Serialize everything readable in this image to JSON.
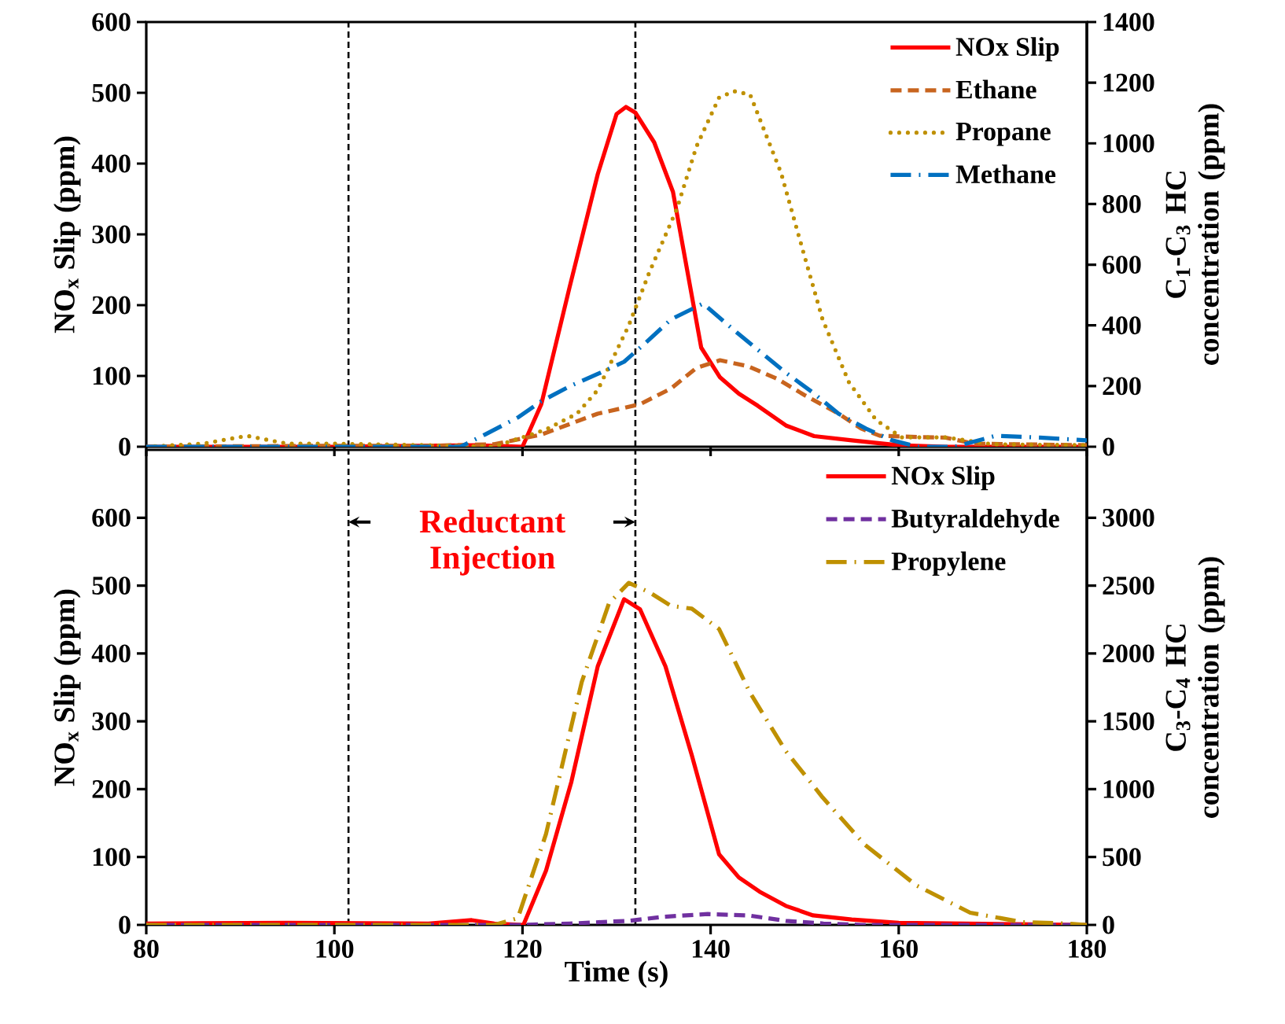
{
  "chart_data": [
    {
      "type": "line",
      "ylabel": "NO$_{x}$ Slip (ppm)",
      "y2label": "C$_{1}$-C$_{3}$ HC concentration (ppm)",
      "xlim": [
        80,
        180
      ],
      "xticks": [
        80,
        100,
        120,
        140,
        160,
        180
      ],
      "ylim": [
        0,
        600
      ],
      "yticks": [
        0,
        100,
        200,
        300,
        400,
        500,
        600
      ],
      "y2lim": [
        0,
        1400
      ],
      "y2ticks": [
        0,
        200,
        400,
        600,
        800,
        1000,
        1200,
        1400
      ],
      "tick_labels": "y",
      "legend": "top right",
      "ref_lines": [
        {
          "axis": "x",
          "value": 101.5,
          "line_style": "dashed"
        },
        {
          "axis": "x",
          "value": 132,
          "line_style": "dashed"
        }
      ],
      "series": [
        {
          "name": "NOx Slip",
          "color": "#ff0000",
          "line_style": "solid",
          "x": [
            80,
            100,
            115,
            120,
            122,
            125,
            128,
            130,
            131,
            132,
            134,
            136,
            137.5,
            139,
            141,
            143,
            145,
            148,
            151,
            155,
            160,
            165,
            180
          ],
          "values": [
            0,
            0,
            2,
            0,
            60,
            225,
            385,
            470,
            480,
            472,
            430,
            360,
            250,
            140,
            98,
            75,
            58,
            30,
            15,
            9,
            2,
            0,
            0
          ]
        },
        {
          "name": "Ethane",
          "color": "#c8641e",
          "line_style": "dashed",
          "axis": "y2",
          "x": [
            80,
            100,
            110,
            117,
            122,
            128,
            132.5,
            135.8,
            138.5,
            141,
            144,
            147,
            150,
            153.6,
            156,
            158,
            162,
            165,
            168,
            180
          ],
          "values": [
            0,
            3,
            3,
            8,
            40,
            109,
            140,
            192,
            260,
            285,
            265,
            225,
            170,
            109,
            60,
            36,
            32,
            30,
            10,
            5
          ]
        },
        {
          "name": "Propane",
          "color": "#bf9000",
          "line_style": "dotted",
          "axis": "y2",
          "x": [
            80,
            86,
            90.7,
            95,
            100,
            110,
            117,
            122.5,
            125.8,
            128,
            131.3,
            133.5,
            136.4,
            138.5,
            140.9,
            142.5,
            144.2,
            147.5,
            149.7,
            151.9,
            154.7,
            157.6,
            160.3,
            165,
            170,
            180
          ],
          "values": [
            0,
            10,
            36,
            10,
            10,
            5,
            0,
            57,
            109,
            187,
            400,
            576,
            783,
            990,
            1151,
            1172,
            1161,
            902,
            659,
            420,
            213,
            88,
            31,
            31,
            8,
            5
          ]
        },
        {
          "name": "Methane",
          "color": "#0070c0",
          "line_style": "dashdot",
          "axis": "y2",
          "x": [
            80,
            100,
            113.4,
            116,
            119.6,
            122,
            125.2,
            128,
            130.8,
            133,
            135.8,
            139.2,
            142.5,
            145,
            148,
            150.8,
            153.6,
            156.5,
            159.3,
            162,
            166,
            170.3,
            175,
            180
          ],
          "values": [
            0,
            0,
            0,
            40,
            98,
            150,
            202,
            240,
            280,
            340,
            420,
            472,
            384,
            320,
            244,
            180,
            109,
            60,
            21,
            0,
            0,
            36,
            30,
            21
          ]
        }
      ]
    },
    {
      "type": "line",
      "ylabel": "NO$_{x}$ Slip (ppm)",
      "y2label": "C$_{3}$-C$_{4}$ HC concentration (ppm)",
      "xlabel": "Time (s)",
      "xlim": [
        80,
        180
      ],
      "xticks": [
        80,
        100,
        120,
        140,
        160,
        180
      ],
      "ylim": [
        0,
        700
      ],
      "yticks": [
        0,
        100,
        200,
        300,
        400,
        500,
        600
      ],
      "y2lim": [
        0,
        3500
      ],
      "y2ticks": [
        0,
        500,
        1000,
        1500,
        2000,
        2500,
        3000
      ],
      "legend": "top right",
      "ref_lines": [
        {
          "axis": "x",
          "value": 101.5,
          "line_style": "dashed"
        },
        {
          "axis": "x",
          "value": 132,
          "line_style": "dashed"
        }
      ],
      "annotations": [
        "Reductant Injection"
      ],
      "series": [
        {
          "name": "NOx Slip",
          "color": "#ff0000",
          "line_style": "solid",
          "x": [
            80,
            95,
            110,
            114.6,
            117,
            120.1,
            122.5,
            125.2,
            128,
            130.8,
            132.5,
            135.2,
            138,
            140.9,
            143,
            145.2,
            148,
            150.9,
            155,
            160,
            180
          ],
          "values": [
            2,
            3,
            2,
            7,
            2,
            0,
            80,
            211,
            381,
            480,
            465,
            381,
            250,
            104,
            70,
            49,
            28,
            14,
            8,
            3,
            0
          ]
        },
        {
          "name": "Butyraldehyde",
          "color": "#7030a0",
          "line_style": "dashed",
          "axis": "y2",
          "x": [
            80,
            100,
            120,
            125,
            131.3,
            135,
            139.7,
            144,
            148,
            152,
            156,
            180
          ],
          "values": [
            0,
            0,
            0,
            10,
            30,
            60,
            80,
            70,
            30,
            10,
            0,
            0
          ]
        },
        {
          "name": "Propylene",
          "color": "#bf9000",
          "line_style": "dashdot",
          "axis": "y2",
          "x": [
            80,
            100,
            117,
            119.5,
            122.5,
            126.3,
            129.2,
            131.3,
            133.5,
            135.8,
            138,
            140.9,
            144.2,
            148,
            151.9,
            156.4,
            161.9,
            167.6,
            173.2,
            178,
            180
          ],
          "values": [
            0,
            0,
            0,
            50,
            670,
            1790,
            2370,
            2520,
            2450,
            2350,
            2330,
            2180,
            1710,
            1280,
            940,
            590,
            290,
            90,
            20,
            10,
            0
          ]
        }
      ]
    }
  ]
}
